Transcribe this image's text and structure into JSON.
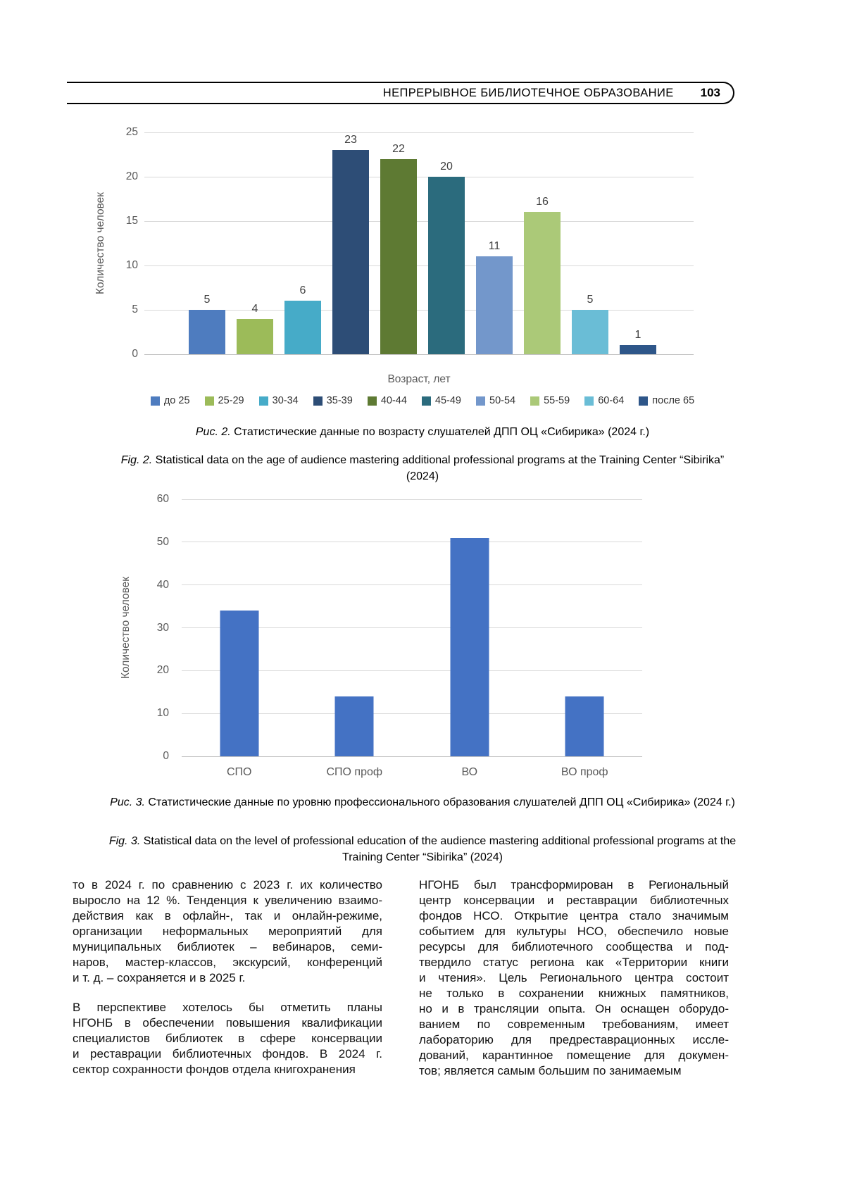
{
  "header": {
    "title": "НЕПРЕРЫВНОЕ БИБЛИОТЕЧНОЕ ОБРАЗОВАНИЕ",
    "page_number": "103"
  },
  "chart_data": [
    {
      "type": "bar",
      "title": "",
      "ylabel": "Количество человек",
      "xlabel": "Возраст, лет",
      "ylim": [
        0,
        25
      ],
      "yticks": [
        0,
        5,
        10,
        15,
        20,
        25
      ],
      "grid": true,
      "legend_position": "bottom",
      "value_labels": true,
      "categories": [
        "до 25",
        "25-29",
        "30-34",
        "35-39",
        "40-44",
        "45-49",
        "50-54",
        "55-59",
        "60-64",
        "после 65"
      ],
      "values": [
        5,
        4,
        6,
        23,
        22,
        20,
        11,
        16,
        5,
        1
      ],
      "colors": [
        "#4e7cbf",
        "#9cbb59",
        "#46abc8",
        "#2d4d76",
        "#5e7a33",
        "#2b6b7d",
        "#7397cb",
        "#abc978",
        "#6abdd6",
        "#2e5689"
      ]
    },
    {
      "type": "bar",
      "title": "",
      "ylabel": "Количество человек",
      "xlabel": "",
      "ylim": [
        0,
        60
      ],
      "yticks": [
        0,
        10,
        20,
        30,
        40,
        50,
        60
      ],
      "grid": true,
      "legend_position": "none",
      "value_labels": false,
      "categories": [
        "СПО",
        "СПО проф",
        "ВО",
        "ВО проф"
      ],
      "values": [
        34,
        14,
        51,
        14
      ],
      "colors": [
        "#4472c4",
        "#4472c4",
        "#4472c4",
        "#4472c4"
      ]
    }
  ],
  "captions": {
    "fig2_ru_prefix": "Рис. 2.",
    "fig2_ru_text": " Статистические данные по возрасту слушателей ДПП ОЦ «Сибирика» (2024 г.)",
    "fig2_en_prefix": "Fig. 2.",
    "fig2_en_text": " Statistical data on the age of audience mastering additional professional programs at the Training Center “Sibirika” (2024)",
    "fig3_ru_prefix": "Рис. 3.",
    "fig3_ru_text": " Статистические данные по уровню профессионального образования слушателей ДПП ОЦ «Сибирика» (2024 г.)",
    "fig3_en_prefix": "Fig. 3.",
    "fig3_en_text": " Statistical data on the level of professional education of the audience mastering additional professional programs at the Training Center “Sibirika” (2024)"
  },
  "body": {
    "left_column": [
      {
        "lines": [
          "то в 2024 г. по сравнению с 2023 г. их количество",
          "выросло на 12 %. Тенденция к увеличению взаимо-",
          "действия как в офлайн-, так и онлайн-режиме,",
          "организации неформальных мероприятий для",
          "муниципальных библиотек – вебинаров, семи-",
          "наров, мастер-классов, экскурсий, конференций",
          "и т. д. – сохраняется и в 2025 г."
        ]
      },
      {
        "lines": [
          "В перспективе хотелось бы отметить планы",
          "НГОНБ в обеспечении повышения квалификации",
          "специалистов библиотек в сфере консервации",
          "и реставрации библиотечных фондов. В 2024 г.",
          "сектор сохранности фондов отдела книгохранения"
        ]
      }
    ],
    "right_column": [
      {
        "lines": [
          "НГОНБ был трансформирован в Региональный",
          "центр консервации и реставрации библиотечных",
          "фондов НСО. Открытие центра стало значимым",
          "событием для культуры НСО, обеспечило новые",
          "ресурсы для библиотечного сообщества и под-",
          "твердило статус региона как «Территории книги",
          "и чтения». Цель Регионального центра состоит",
          "не только в сохранении книжных памятников,",
          "но и в трансляции опыта. Он оснащен оборудо-",
          "ванием по современным требованиям, имеет",
          "лабораторию для предреставрационных иссле-",
          "дований, карантинное помещение для докумен-",
          "тов; является самым большим по занимаемым"
        ]
      }
    ]
  }
}
